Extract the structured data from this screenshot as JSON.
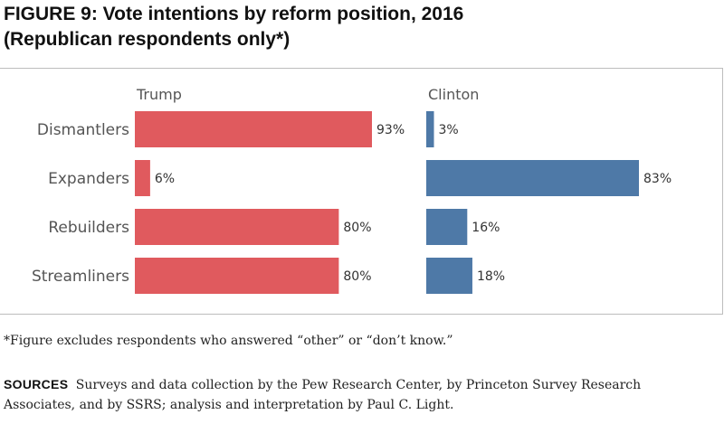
{
  "figure": {
    "title_line1": "FIGURE 9: Vote intentions by reform position, 2016",
    "title_line2": "(Republican respondents only*)"
  },
  "chart_data": {
    "type": "bar",
    "orientation": "horizontal",
    "categories": [
      "Dismantlers",
      "Expanders",
      "Rebuilders",
      "Streamliners"
    ],
    "series": [
      {
        "name": "Trump",
        "values": [
          93,
          6,
          80,
          80
        ],
        "labels": [
          "93%",
          "6%",
          "80%",
          "80%"
        ],
        "color": "#e05a5e"
      },
      {
        "name": "Clinton",
        "values": [
          3,
          83,
          16,
          18
        ],
        "labels": [
          "3%",
          "83%",
          "16%",
          "18%"
        ],
        "color": "#4e79a7"
      }
    ],
    "xlim": [
      0,
      100
    ],
    "grid": false,
    "legend": "none"
  },
  "footnote": "*Figure excludes respondents who answered “other” or “don’t know.”",
  "sources": {
    "label": "SOURCES",
    "text": "Surveys and data collection by the Pew Research Center, by Princeton Survey Research Associates, and by SSRS; analysis and interpretation by Paul C. Light."
  }
}
